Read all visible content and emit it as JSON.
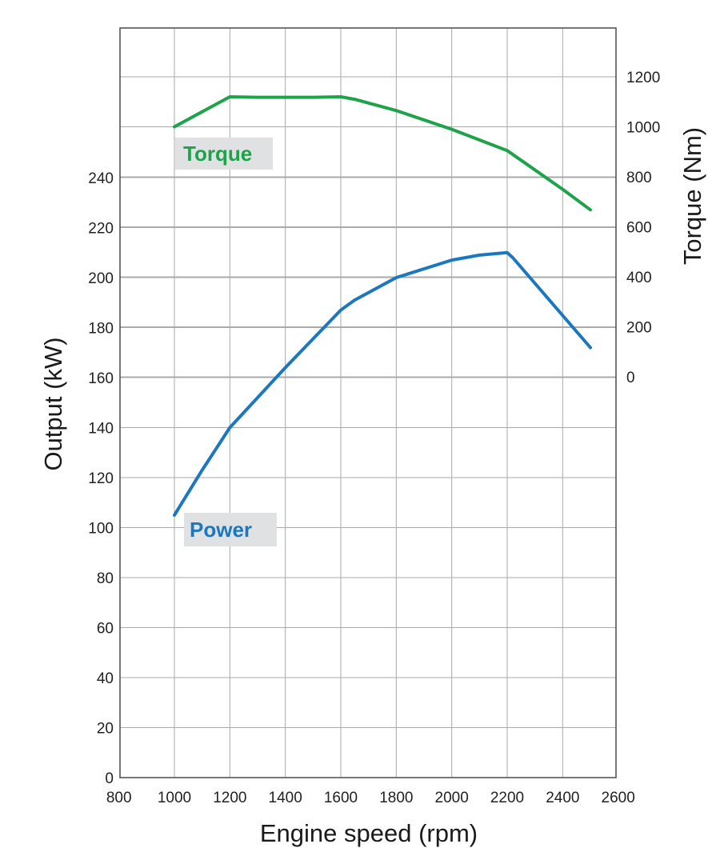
{
  "chart_data": {
    "type": "line",
    "xlabel": "Engine speed (rpm)",
    "ylabel_left": "Output (kW)",
    "ylabel_right": "Torque (Nm)",
    "xlim": [
      800,
      2600
    ],
    "x_ticks": [
      800,
      1000,
      1200,
      1400,
      1600,
      1800,
      2000,
      2200,
      2400,
      2600
    ],
    "ylim_left": [
      0,
      240
    ],
    "y_left_ticks": [
      0,
      20,
      40,
      60,
      80,
      100,
      120,
      140,
      160,
      180,
      200,
      220,
      240
    ],
    "y_right_ticks": [
      0,
      200,
      400,
      600,
      800,
      1000,
      1200
    ],
    "grid": true,
    "series": [
      {
        "name": "Torque",
        "axis": "right",
        "color": "#1ea34a",
        "x": [
          1000,
          1050,
          1200,
          1300,
          1400,
          1500,
          1600,
          1650,
          1800,
          2000,
          2200,
          2400,
          2500
        ],
        "values": [
          1000,
          1030,
          1120,
          1118,
          1118,
          1118,
          1120,
          1110,
          1065,
          990,
          905,
          750,
          668
        ]
      },
      {
        "name": "Power",
        "axis": "left",
        "color": "#1b78be",
        "x": [
          1000,
          1100,
          1200,
          1400,
          1600,
          1650,
          1800,
          2000,
          2100,
          2200,
          2220,
          2500
        ],
        "values": [
          105,
          123,
          140,
          164,
          187,
          191,
          200,
          207,
          209,
          210,
          208,
          172
        ]
      }
    ]
  }
}
